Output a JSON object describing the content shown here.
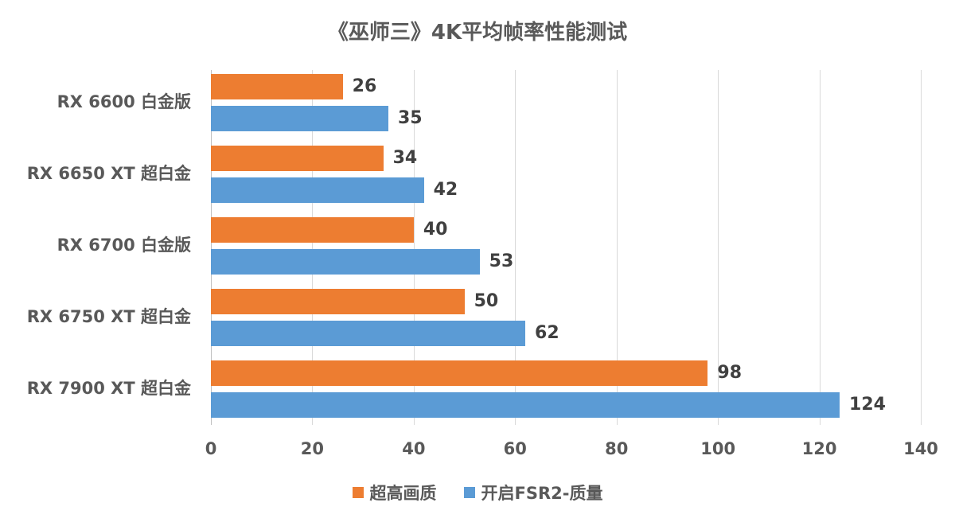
{
  "title": "《巫师三》4K平均帧率性能测试",
  "colors": {
    "series0": "#ed7d31",
    "series1": "#5b9bd5"
  },
  "legend": [
    {
      "label": "超高画质",
      "color": "#ed7d31"
    },
    {
      "label": "开启FSR2-质量",
      "color": "#5b9bd5"
    }
  ],
  "x_ticks": [
    "0",
    "20",
    "40",
    "60",
    "80",
    "100",
    "120",
    "140"
  ],
  "categories": [
    "RX 6600 白金版",
    "RX 6650 XT 超白金",
    "RX 6700 白金版",
    "RX 6750 XT 超白金",
    "RX 7900 XT 超白金"
  ],
  "chart_data": {
    "type": "bar",
    "orientation": "horizontal",
    "title": "《巫师三》4K平均帧率性能测试",
    "xlabel": "",
    "ylabel": "",
    "categories": [
      "RX 6600 白金版",
      "RX 6650 XT 超白金",
      "RX 6700 白金版",
      "RX 6750 XT 超白金",
      "RX 7900 XT 超白金"
    ],
    "series": [
      {
        "name": "超高画质",
        "color": "#ed7d31",
        "values": [
          26,
          34,
          40,
          50,
          98
        ]
      },
      {
        "name": "开启FSR2-质量",
        "color": "#5b9bd5",
        "values": [
          35,
          42,
          53,
          62,
          124
        ]
      }
    ],
    "xlim": [
      0,
      140
    ],
    "x_ticks": [
      0,
      20,
      40,
      60,
      80,
      100,
      120,
      140
    ],
    "grid": "vertical",
    "legend_position": "bottom",
    "data_labels": true
  }
}
